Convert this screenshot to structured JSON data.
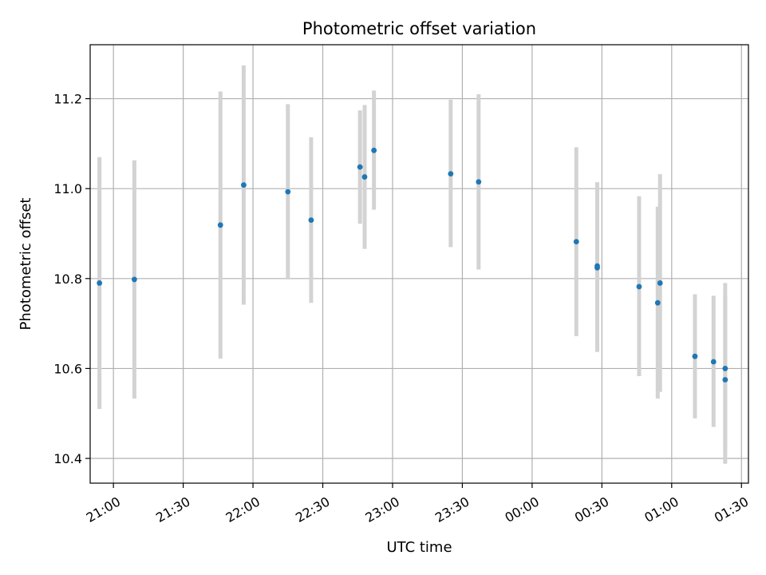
{
  "chart_data": {
    "type": "scatter",
    "title": "Photometric offset variation",
    "xlabel": "UTC time",
    "ylabel": "Photometric offset",
    "grid": true,
    "xlim": [
      "20:50",
      "01:33"
    ],
    "ylim": [
      10.345,
      11.32
    ],
    "x_ticks": [
      "21:00",
      "21:30",
      "22:00",
      "22:30",
      "23:00",
      "23:30",
      "00:00",
      "00:30",
      "01:00",
      "01:30"
    ],
    "y_ticks": [
      10.4,
      10.6,
      10.8,
      11.0,
      11.2
    ],
    "y_tick_labels": [
      "10.4",
      "10.6",
      "10.8",
      "11.0",
      "11.2"
    ],
    "colors": {
      "point": "#1f77b4",
      "errorbar": "#d3d3d3",
      "grid": "#b0b0b0"
    },
    "series": [
      {
        "points": [
          {
            "x": "20:54",
            "y": 10.79,
            "ylow": 10.51,
            "yhigh": 11.07
          },
          {
            "x": "21:09",
            "y": 10.798,
            "ylow": 10.533,
            "yhigh": 11.063
          },
          {
            "x": "21:46",
            "y": 10.919,
            "ylow": 10.622,
            "yhigh": 11.216
          },
          {
            "x": "21:56",
            "y": 11.008,
            "ylow": 10.742,
            "yhigh": 11.274
          },
          {
            "x": "22:15",
            "y": 10.993,
            "ylow": 10.798,
            "yhigh": 11.188
          },
          {
            "x": "22:25",
            "y": 10.93,
            "ylow": 10.746,
            "yhigh": 11.114
          },
          {
            "x": "22:46",
            "y": 11.048,
            "ylow": 10.922,
            "yhigh": 11.174
          },
          {
            "x": "22:48",
            "y": 11.026,
            "ylow": 10.866,
            "yhigh": 11.186
          },
          {
            "x": "22:52",
            "y": 11.085,
            "ylow": 10.953,
            "yhigh": 11.218
          },
          {
            "x": "23:25",
            "y": 11.033,
            "ylow": 10.87,
            "yhigh": 11.198
          },
          {
            "x": "23:37",
            "y": 11.015,
            "ylow": 10.82,
            "yhigh": 11.21
          },
          {
            "x": "00:19",
            "y": 10.882,
            "ylow": 10.672,
            "yhigh": 11.092
          },
          {
            "x": "00:28",
            "y": 10.824,
            "ylow": 10.637,
            "yhigh": 11.014
          },
          {
            "x": "00:28",
            "y": 10.828,
            "ylow": 10.637,
            "yhigh": 11.014
          },
          {
            "x": "00:46",
            "y": 10.782,
            "ylow": 10.583,
            "yhigh": 10.983
          },
          {
            "x": "00:54",
            "y": 10.746,
            "ylow": 10.533,
            "yhigh": 10.96
          },
          {
            "x": "00:55",
            "y": 10.79,
            "ylow": 10.548,
            "yhigh": 11.032
          },
          {
            "x": "01:10",
            "y": 10.627,
            "ylow": 10.489,
            "yhigh": 10.765
          },
          {
            "x": "01:18",
            "y": 10.615,
            "ylow": 10.47,
            "yhigh": 10.762
          },
          {
            "x": "01:23",
            "y": 10.6,
            "ylow": 10.41,
            "yhigh": 10.79
          },
          {
            "x": "01:23",
            "y": 10.575,
            "ylow": 10.388,
            "yhigh": 10.762
          }
        ]
      }
    ]
  }
}
